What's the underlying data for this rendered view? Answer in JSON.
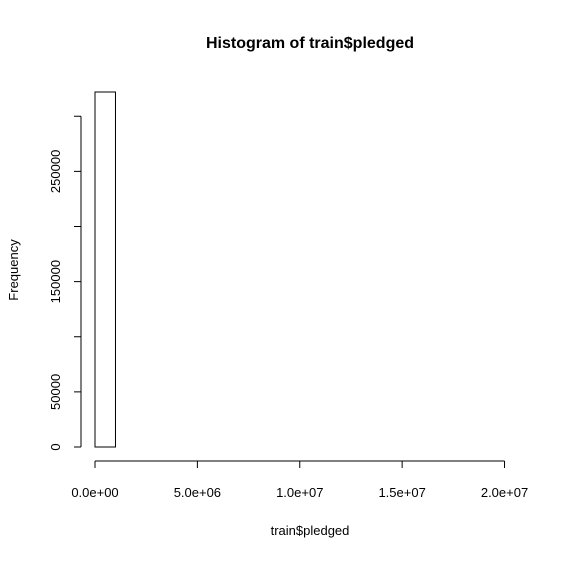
{
  "chart_data": {
    "type": "bar",
    "title": "Histogram of train$pledged",
    "xlabel": "train$pledged",
    "ylabel": "Frequency",
    "bin_width": 1000000,
    "bins": [
      {
        "start": 0,
        "end": 1000000,
        "count": 322000
      },
      {
        "start": 1000000,
        "end": 2000000,
        "count": 0
      },
      {
        "start": 2000000,
        "end": 3000000,
        "count": 0
      },
      {
        "start": 3000000,
        "end": 4000000,
        "count": 0
      },
      {
        "start": 4000000,
        "end": 5000000,
        "count": 0
      },
      {
        "start": 5000000,
        "end": 6000000,
        "count": 0
      },
      {
        "start": 6000000,
        "end": 7000000,
        "count": 0
      },
      {
        "start": 7000000,
        "end": 8000000,
        "count": 0
      },
      {
        "start": 8000000,
        "end": 9000000,
        "count": 0
      },
      {
        "start": 9000000,
        "end": 10000000,
        "count": 0
      },
      {
        "start": 10000000,
        "end": 11000000,
        "count": 0
      },
      {
        "start": 11000000,
        "end": 12000000,
        "count": 0
      },
      {
        "start": 12000000,
        "end": 13000000,
        "count": 0
      },
      {
        "start": 13000000,
        "end": 14000000,
        "count": 0
      },
      {
        "start": 14000000,
        "end": 15000000,
        "count": 0
      },
      {
        "start": 15000000,
        "end": 16000000,
        "count": 0
      },
      {
        "start": 16000000,
        "end": 17000000,
        "count": 0
      },
      {
        "start": 17000000,
        "end": 18000000,
        "count": 0
      },
      {
        "start": 18000000,
        "end": 19000000,
        "count": 0
      },
      {
        "start": 19000000,
        "end": 20000000,
        "count": 0
      },
      {
        "start": 20000000,
        "end": 21000000,
        "count": 0
      }
    ],
    "xlim": [
      0,
      21000000
    ],
    "ylim": [
      0,
      322000
    ],
    "x_ticks": [
      {
        "value": 0,
        "label": "0.0e+00"
      },
      {
        "value": 5000000,
        "label": "5.0e+06"
      },
      {
        "value": 10000000,
        "label": "1.0e+07"
      },
      {
        "value": 15000000,
        "label": "1.5e+07"
      },
      {
        "value": 20000000,
        "label": "2.0e+07"
      }
    ],
    "y_ticks": [
      {
        "value": 0,
        "label": "0"
      },
      {
        "value": 50000,
        "label": "50000"
      },
      {
        "value": 100000,
        "label": ""
      },
      {
        "value": 150000,
        "label": "150000"
      },
      {
        "value": 200000,
        "label": ""
      },
      {
        "value": 250000,
        "label": "250000"
      },
      {
        "value": 300000,
        "label": ""
      }
    ],
    "grid": false,
    "legend": "none",
    "colors": {
      "bar_fill": "#ffffff",
      "bar_stroke": "#000000",
      "axis": "#000000"
    }
  }
}
